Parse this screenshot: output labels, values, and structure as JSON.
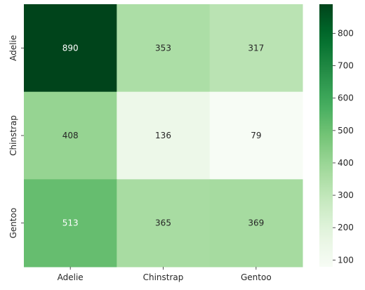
{
  "chart_data": {
    "type": "heatmap",
    "title": "",
    "xlabel": "",
    "ylabel": "",
    "x_categories": [
      "Adelie",
      "Chinstrap",
      "Gentoo"
    ],
    "y_categories": [
      "Adelie",
      "Chinstrap",
      "Gentoo"
    ],
    "values": [
      [
        890,
        353,
        317
      ],
      [
        408,
        136,
        79
      ],
      [
        513,
        365,
        369
      ]
    ],
    "colormap": "Greens",
    "colorbar": {
      "range": [
        79,
        890
      ],
      "ticks": [
        100,
        200,
        300,
        400,
        500,
        600,
        700,
        800
      ]
    },
    "annotations": true,
    "grid": false
  }
}
